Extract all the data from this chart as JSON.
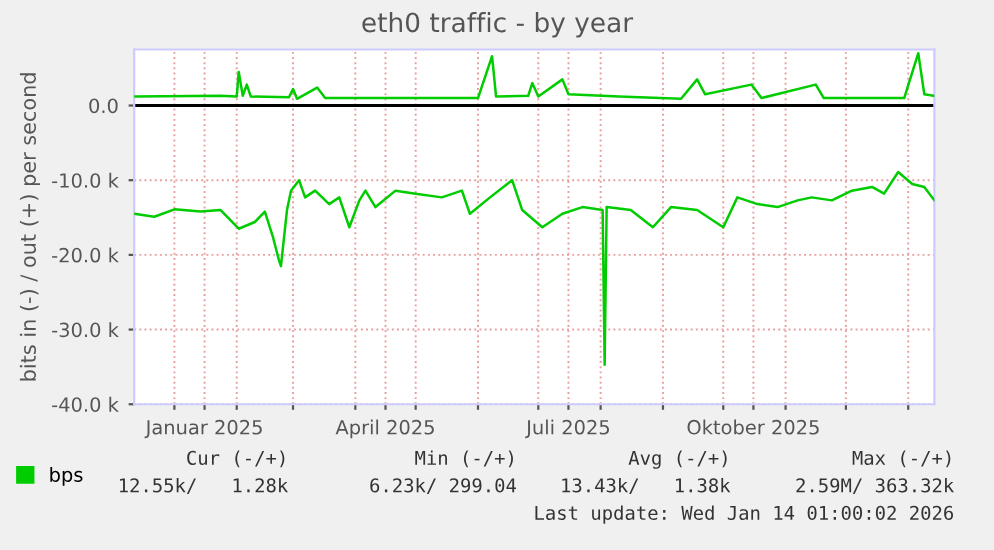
{
  "chart_data": {
    "type": "line",
    "title": "eth0 traffic - by year",
    "ylabel": "bits in (-) / out (+) per second",
    "xlim": [
      "2024-12-12",
      "2026-01-14"
    ],
    "ylim": [
      -40000,
      7500
    ],
    "xticks": [
      {
        "value": "2025-01-01",
        "label": null
      },
      {
        "value": "2025-01-16",
        "label": "Januar 2025"
      },
      {
        "value": "2025-02-01",
        "label": null
      },
      {
        "value": "2025-03-01",
        "label": null
      },
      {
        "value": "2025-04-01",
        "label": null
      },
      {
        "value": "2025-04-16",
        "label": "April 2025"
      },
      {
        "value": "2025-05-01",
        "label": null
      },
      {
        "value": "2025-06-01",
        "label": null
      },
      {
        "value": "2025-07-01",
        "label": null
      },
      {
        "value": "2025-07-16",
        "label": "Juli 2025"
      },
      {
        "value": "2025-08-01",
        "label": null
      },
      {
        "value": "2025-09-01",
        "label": null
      },
      {
        "value": "2025-10-01",
        "label": null
      },
      {
        "value": "2025-10-16",
        "label": "Oktober 2025"
      },
      {
        "value": "2025-11-01",
        "label": null
      },
      {
        "value": "2025-12-01",
        "label": null
      },
      {
        "value": "2026-01-01",
        "label": null
      }
    ],
    "yticks": [
      {
        "value": 0,
        "label": "0.0"
      },
      {
        "value": -10000,
        "label": "-10.0 k"
      },
      {
        "value": -20000,
        "label": "-20.0 k"
      },
      {
        "value": -30000,
        "label": "-30.0 k"
      },
      {
        "value": -40000,
        "label": "-40.0 k"
      }
    ],
    "grid": true,
    "legend": "bottom left",
    "marker": "none",
    "line_style": "solid",
    "ref_lines": [
      {
        "axis": "y",
        "value": 0,
        "label": null,
        "color": "#000000"
      }
    ],
    "series": [
      {
        "name": "bps",
        "color": "#00cc00",
        "x": [
          "2024-12-12",
          "2025-01-24",
          "2025-02-01",
          "2025-02-02",
          "2025-02-04",
          "2025-02-06",
          "2025-02-08",
          "2025-02-27",
          "2025-03-01",
          "2025-03-03",
          "2025-03-13",
          "2025-03-17",
          "2025-04-15",
          "2025-06-01",
          "2025-06-08",
          "2025-06-10",
          "2025-06-26",
          "2025-06-28",
          "2025-07-01",
          "2025-07-13",
          "2025-07-16",
          "2025-08-10",
          "2025-09-10",
          "2025-09-18",
          "2025-09-22",
          "2025-10-15",
          "2025-10-20",
          "2025-11-16",
          "2025-11-20",
          "2025-12-30",
          "2026-01-06",
          "2026-01-09",
          "2026-01-14"
        ],
        "values": [
          1200,
          1300,
          1200,
          4500,
          1300,
          2800,
          1200,
          1100,
          2200,
          900,
          2400,
          1000,
          1000,
          1000,
          6600,
          1200,
          1300,
          3000,
          1200,
          3500,
          1500,
          1200,
          900,
          3500,
          1500,
          2800,
          1000,
          2800,
          1000,
          1000,
          7000,
          1500,
          1300
        ]
      },
      {
        "color": "#00cc00",
        "x": [
          "2024-12-12",
          "2024-12-22",
          "2025-01-01",
          "2025-01-14",
          "2025-01-24",
          "2025-02-02",
          "2025-02-10",
          "2025-02-15",
          "2025-02-19",
          "2025-02-22",
          "2025-02-23",
          "2025-02-26",
          "2025-02-28",
          "2025-03-04",
          "2025-03-07",
          "2025-03-12",
          "2025-03-19",
          "2025-03-24",
          "2025-03-29",
          "2025-04-03",
          "2025-04-06",
          "2025-04-11",
          "2025-04-21",
          "2025-05-01",
          "2025-05-14",
          "2025-05-24",
          "2025-05-28",
          "2025-06-07",
          "2025-06-18",
          "2025-06-23",
          "2025-07-03",
          "2025-07-13",
          "2025-07-23",
          "2025-08-02",
          "2025-08-03",
          "2025-08-04",
          "2025-08-16",
          "2025-08-27",
          "2025-09-05",
          "2025-09-18",
          "2025-10-01",
          "2025-10-08",
          "2025-10-18",
          "2025-10-28",
          "2025-11-07",
          "2025-11-14",
          "2025-11-24",
          "2025-12-04",
          "2025-12-14",
          "2025-12-20",
          "2025-12-27",
          "2026-01-03",
          "2026-01-09",
          "2026-01-14"
        ],
        "values": [
          -14500,
          -14900,
          -13900,
          -14200,
          -14000,
          -16500,
          -15600,
          -14200,
          -17600,
          -20700,
          -21500,
          -14000,
          -11400,
          -10000,
          -12300,
          -11400,
          -13200,
          -12300,
          -16300,
          -12700,
          -11400,
          -13600,
          -11400,
          -11800,
          -12300,
          -11400,
          -14500,
          -12300,
          -10000,
          -14000,
          -16300,
          -14500,
          -13600,
          -14000,
          -34700,
          -13600,
          -14000,
          -16300,
          -13600,
          -14000,
          -16300,
          -12300,
          -13200,
          -13600,
          -12700,
          -12300,
          -12700,
          -11400,
          -10900,
          -11800,
          -8900,
          -10500,
          -10900,
          -12700
        ]
      }
    ],
    "annotations": [
      "Cur (-/+)",
      "Min (-/+)",
      "Avg (-/+)",
      "Max (-/+)",
      "12.55k/   1.28k",
      "6.23k/ 299.04",
      "13.43k/   1.38k",
      "2.59M/ 363.32k",
      "Last update: Wed Jan 14 01:00:02 2026"
    ]
  }
}
